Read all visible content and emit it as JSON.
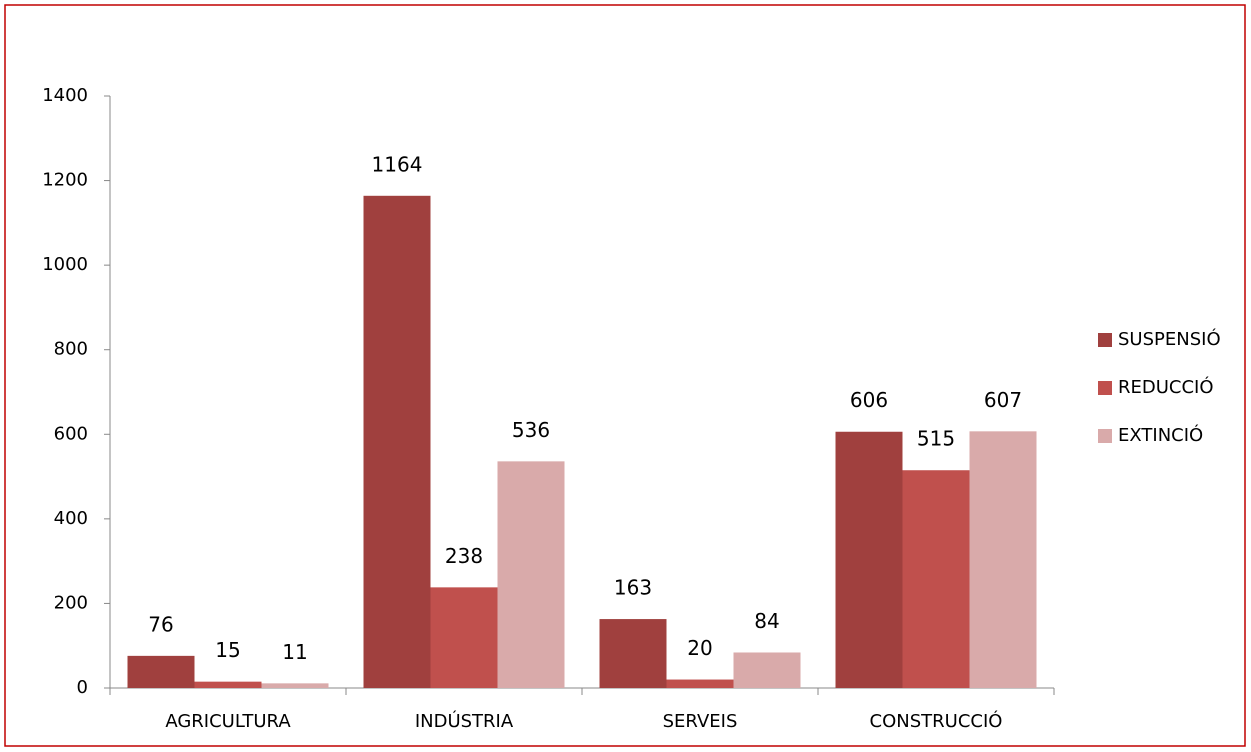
{
  "chart_data": {
    "type": "bar",
    "categories": [
      "AGRICULTURA",
      "INDÚSTRIA",
      "SERVEIS",
      "CONSTRUCCIÓ"
    ],
    "series": [
      {
        "name": "SUSPENSIÓ",
        "color": "#a0403e",
        "values": [
          76,
          1164,
          163,
          606
        ]
      },
      {
        "name": "REDUCCIÓ",
        "color": "#c0504d",
        "values": [
          15,
          238,
          20,
          515
        ]
      },
      {
        "name": "EXTINCIÓ",
        "color": "#d9aaaa",
        "values": [
          11,
          536,
          84,
          607
        ]
      }
    ],
    "ylim": [
      0,
      1400
    ],
    "yticks": [
      0,
      200,
      400,
      600,
      800,
      1000,
      1200,
      1400
    ],
    "grid": false,
    "legend": "right"
  }
}
